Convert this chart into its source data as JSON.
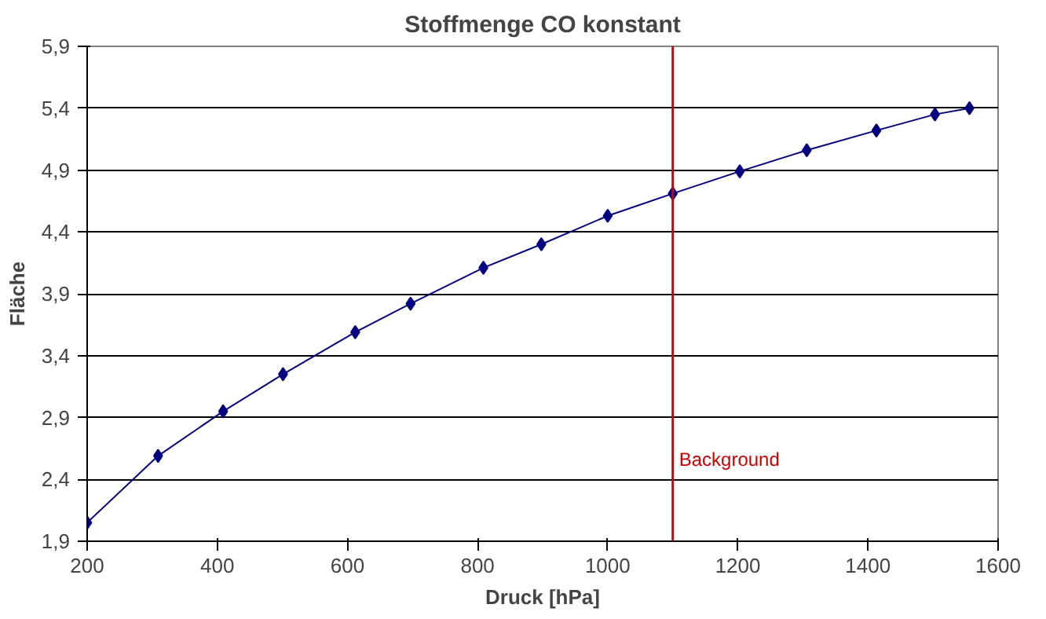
{
  "chart_data": {
    "type": "line",
    "title": "Stoffmenge CO konstant",
    "xlabel": "Druck [hPa]",
    "ylabel": "Fläche",
    "x": [
      200,
      309,
      409,
      501,
      612,
      697,
      809,
      898,
      1000,
      1100,
      1203,
      1306,
      1413,
      1503,
      1556
    ],
    "series": [
      {
        "color": "#000080",
        "values": [
          2.05,
          2.59,
          2.95,
          3.25,
          3.59,
          3.82,
          4.11,
          4.3,
          4.53,
          4.71,
          4.89,
          5.06,
          5.22,
          5.35,
          5.4
        ]
      }
    ],
    "xlim": [
      200,
      1600
    ],
    "xticks": [
      200,
      400,
      600,
      800,
      1000,
      1200,
      1400,
      1600
    ],
    "ylim": [
      1.9,
      5.9
    ],
    "yticks": [
      {
        "value": 1.9,
        "label": "1,9"
      },
      {
        "value": 2.4,
        "label": "2,4"
      },
      {
        "value": 2.9,
        "label": "2,9"
      },
      {
        "value": 3.4,
        "label": "3,4"
      },
      {
        "value": 3.9,
        "label": "3,9"
      },
      {
        "value": 4.4,
        "label": "4,4"
      },
      {
        "value": 4.9,
        "label": "4,9"
      },
      {
        "value": 5.4,
        "label": "5,4"
      },
      {
        "value": 5.9,
        "label": "5,9"
      }
    ],
    "ref_lines": [
      {
        "axis": "x",
        "value": 1100,
        "label": "Background",
        "color": "#cc0000"
      }
    ],
    "grid": "y",
    "marker": "diamond",
    "line_style": "solid"
  }
}
